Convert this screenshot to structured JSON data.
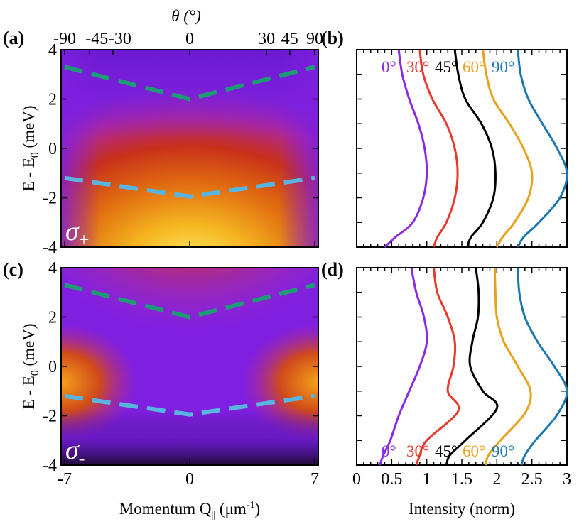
{
  "figure": {
    "panel_labels": [
      "(a)",
      "(b)",
      "(c)",
      "(d)"
    ],
    "top_axis_title": "θ (°)",
    "top_ticks": [
      "-90",
      "-45",
      "-30",
      "0",
      "30",
      "45",
      "90"
    ],
    "left_axis_title": "E - E",
    "left_axis_title_sub": "0",
    "left_axis_title_unit": " (meV)",
    "bottom_axis_title_left": "Momentum Q",
    "bottom_axis_title_left_sub": "||",
    "bottom_axis_title_left_unit": " (μm",
    "bottom_axis_title_left_sup": "-1",
    "bottom_axis_title_left_close": ")",
    "bottom_axis_title_right": "Intensity (norm)",
    "sigma_plus_symbol": "σ",
    "sigma_plus_sub": "+",
    "sigma_minus_symbol": "σ",
    "sigma_minus_sub": "-"
  },
  "chart_data": [
    {
      "panel": "(a)",
      "type": "heatmap",
      "xlabel": "Momentum Q|| (μm-1)",
      "ylabel": "E - E0 (meV)",
      "xlim": [
        -7.2,
        7.2
      ],
      "ylim": [
        -4,
        4
      ],
      "yticks": [
        "-4",
        "-2",
        "0",
        "2",
        "4"
      ],
      "top_axis": {
        "label": "θ (°)",
        "ticks": [
          "-90",
          "-45",
          "-30",
          "0",
          "30",
          "45",
          "90"
        ],
        "tick_q": [
          -7,
          -5.6,
          -4.3,
          0,
          4.3,
          5.6,
          7
        ]
      },
      "annotation": "σ+",
      "colormap": [
        "#5a0d9c",
        "#7f1fe0",
        "#c0219a",
        "#d63a1e",
        "#f5a21a",
        "#fff36a"
      ],
      "dashed_curves": [
        {
          "name": "upper",
          "color": "#1f9a77",
          "x": [
            -7,
            0,
            7
          ],
          "y": [
            3.3,
            2.0,
            3.3
          ]
        },
        {
          "name": "lower",
          "color": "#5ab4e0",
          "x": [
            -7,
            0,
            7
          ],
          "y": [
            -1.2,
            -1.95,
            -1.2
          ]
        }
      ]
    },
    {
      "panel": "(b)",
      "type": "line",
      "xlim": [
        0,
        3
      ],
      "ylim": [
        -4,
        4
      ],
      "series": [
        {
          "name": "0°",
          "color": "#8a2be2",
          "x": [
            0.6,
            0.65,
            0.75,
            0.88,
            0.97,
            1.0,
            0.95,
            0.8,
            0.55,
            0.4
          ],
          "y": [
            4,
            3,
            2,
            1,
            0,
            -1,
            -2,
            -3,
            -3.6,
            -4
          ]
        },
        {
          "name": "30°",
          "color": "#e63a2e",
          "x": [
            0.9,
            0.95,
            1.08,
            1.28,
            1.4,
            1.44,
            1.4,
            1.28,
            1.15,
            1.1
          ],
          "y": [
            4,
            3,
            2,
            1,
            0,
            -1,
            -2,
            -3,
            -3.6,
            -4
          ]
        },
        {
          "name": "45°",
          "color": "#000000",
          "x": [
            1.4,
            1.45,
            1.55,
            1.78,
            1.93,
            1.98,
            1.95,
            1.8,
            1.63,
            1.58
          ],
          "y": [
            4,
            3,
            2,
            1,
            0,
            -1,
            -2,
            -3,
            -3.6,
            -4
          ]
        },
        {
          "name": "60°",
          "color": "#e8a219",
          "x": [
            1.8,
            1.85,
            1.95,
            2.18,
            2.38,
            2.5,
            2.45,
            2.25,
            2.08,
            2.0
          ],
          "y": [
            4,
            3,
            2,
            1,
            0,
            -1,
            -2,
            -3,
            -3.6,
            -4
          ]
        },
        {
          "name": "90°",
          "color": "#1a78b0",
          "x": [
            2.3,
            2.34,
            2.45,
            2.65,
            2.86,
            3.0,
            2.9,
            2.6,
            2.38,
            2.3
          ],
          "y": [
            4,
            3,
            2,
            1,
            0,
            -1,
            -2,
            -3,
            -3.6,
            -4
          ]
        }
      ]
    },
    {
      "panel": "(c)",
      "type": "heatmap",
      "xlabel": "Momentum Q|| (μm-1)",
      "ylabel": "E - E0 (meV)",
      "xlim": [
        -7.2,
        7.2
      ],
      "ylim": [
        -4,
        4
      ],
      "xticks": [
        "-7",
        "0",
        "7"
      ],
      "yticks": [
        "-4",
        "-2",
        "0",
        "2",
        "4"
      ],
      "annotation": "σ-",
      "colormap": [
        "#1b0a2e",
        "#5a0d9c",
        "#7f1fe0",
        "#c0219a",
        "#d63a1e",
        "#f5a21a"
      ],
      "dashed_curves": [
        {
          "name": "upper",
          "color": "#1f9a77",
          "x": [
            -7,
            0,
            7
          ],
          "y": [
            3.3,
            2.0,
            3.3
          ]
        },
        {
          "name": "lower",
          "color": "#5ab4e0",
          "x": [
            -7,
            0,
            7
          ],
          "y": [
            -1.2,
            -1.95,
            -1.2
          ]
        }
      ]
    },
    {
      "panel": "(d)",
      "type": "line",
      "xlabel": "Intensity (norm)",
      "xlim": [
        0,
        3
      ],
      "ylim": [
        -4,
        4
      ],
      "xticks": [
        "0",
        "0.5",
        "1",
        "1.5",
        "2",
        "2.5",
        "3"
      ],
      "series": [
        {
          "name": "0°",
          "color": "#8a2be2",
          "x": [
            0.78,
            0.85,
            0.96,
            1.0,
            0.9,
            0.75,
            0.6,
            0.48,
            0.38,
            0.33
          ],
          "y": [
            4,
            3,
            2,
            1,
            0,
            -1,
            -2,
            -3,
            -3.6,
            -4
          ]
        },
        {
          "name": "30°",
          "color": "#e63a2e",
          "x": [
            1.1,
            1.15,
            1.3,
            1.4,
            1.38,
            1.3,
            1.45,
            1.0,
            0.9,
            0.85
          ],
          "y": [
            4,
            3,
            2,
            1,
            0,
            -1,
            -1.8,
            -3,
            -3.6,
            -4
          ]
        },
        {
          "name": "45°",
          "color": "#000000",
          "x": [
            1.7,
            1.74,
            1.73,
            1.65,
            1.62,
            1.8,
            2.0,
            1.55,
            1.33,
            1.28
          ],
          "y": [
            4,
            3,
            2,
            1,
            0,
            -1,
            -1.7,
            -3,
            -3.6,
            -4
          ]
        },
        {
          "name": "60°",
          "color": "#e8a219",
          "x": [
            1.97,
            1.98,
            2.0,
            2.1,
            2.3,
            2.48,
            2.4,
            2.05,
            1.88,
            1.84
          ],
          "y": [
            4,
            3,
            2,
            1,
            0,
            -1,
            -1.9,
            -3,
            -3.6,
            -4
          ]
        },
        {
          "name": "90°",
          "color": "#1a78b0",
          "x": [
            2.3,
            2.32,
            2.4,
            2.58,
            2.82,
            3.0,
            2.85,
            2.55,
            2.4,
            2.35
          ],
          "y": [
            4,
            3,
            2,
            1,
            0,
            -1,
            -2,
            -3,
            -3.6,
            -4
          ]
        }
      ]
    }
  ]
}
